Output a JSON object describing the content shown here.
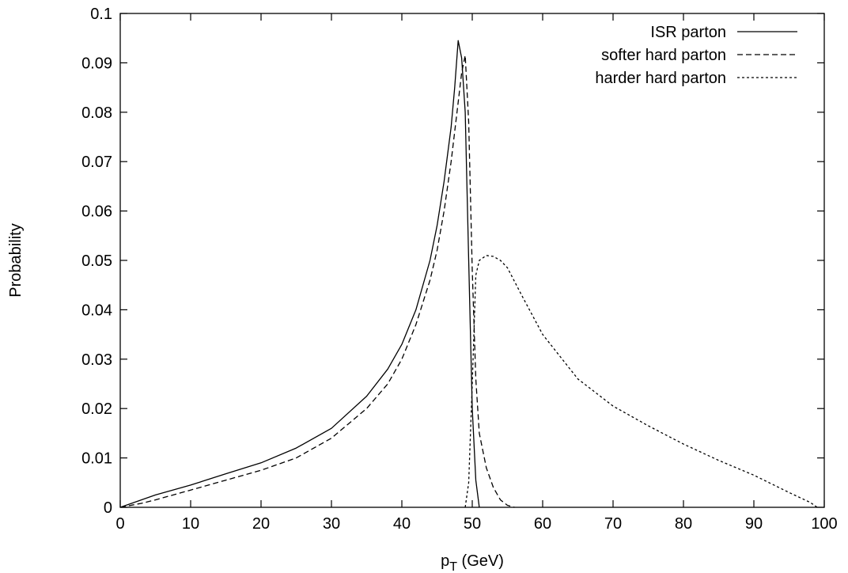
{
  "chart_data": {
    "type": "line",
    "title": "",
    "xlabel": "",
    "xlabel_base": "p",
    "xlabel_sub": "T",
    "xlabel_rest": " (GeV)",
    "ylabel": "Probability",
    "xlim": [
      0,
      100
    ],
    "ylim": [
      0,
      0.1
    ],
    "x_ticks": [
      0,
      10,
      20,
      30,
      40,
      50,
      60,
      70,
      80,
      90,
      100
    ],
    "x_tick_labels": [
      "0",
      "10",
      "20",
      "30",
      "40",
      "50",
      "60",
      "70",
      "80",
      "90",
      "100"
    ],
    "y_ticks": [
      0,
      0.01,
      0.02,
      0.03,
      0.04,
      0.05,
      0.06,
      0.07,
      0.08,
      0.09,
      0.1
    ],
    "y_tick_labels": [
      "0",
      "0.01",
      "0.02",
      "0.03",
      "0.04",
      "0.05",
      "0.06",
      "0.07",
      "0.08",
      "0.09",
      "0.1"
    ],
    "grid": false,
    "legend_position": "top-right",
    "series": [
      {
        "name": "ISR parton",
        "dash": "solid",
        "x": [
          0,
          5,
          10,
          15,
          20,
          25,
          30,
          35,
          38,
          40,
          42,
          44,
          45,
          46,
          47,
          47.5,
          48,
          48.5,
          49,
          49.5,
          50,
          50.5,
          51
        ],
        "y": [
          0,
          0.0025,
          0.0045,
          0.0068,
          0.009,
          0.012,
          0.016,
          0.0225,
          0.028,
          0.033,
          0.04,
          0.05,
          0.057,
          0.066,
          0.077,
          0.085,
          0.0945,
          0.091,
          0.08,
          0.05,
          0.02,
          0.0055,
          0
        ]
      },
      {
        "name": "softer hard parton",
        "dash": "dashed",
        "x": [
          0,
          3,
          5,
          10,
          15,
          20,
          25,
          30,
          35,
          38,
          40,
          42,
          44,
          45,
          46,
          47,
          48,
          48.5,
          49,
          49.5,
          50,
          50.5,
          51,
          52,
          53,
          54,
          55,
          56
        ],
        "y": [
          0,
          0.0008,
          0.0015,
          0.0035,
          0.0055,
          0.0075,
          0.01,
          0.014,
          0.02,
          0.025,
          0.03,
          0.037,
          0.046,
          0.052,
          0.06,
          0.07,
          0.082,
          0.088,
          0.0915,
          0.078,
          0.048,
          0.026,
          0.015,
          0.008,
          0.004,
          0.0015,
          0.0004,
          0
        ]
      },
      {
        "name": "harder hard parton",
        "dash": "dotted",
        "x": [
          49,
          49.5,
          50,
          50.5,
          51,
          52,
          53,
          54,
          55,
          57,
          60,
          65,
          70,
          75,
          80,
          85,
          90,
          95,
          98,
          99
        ],
        "y": [
          0,
          0.005,
          0.025,
          0.047,
          0.05,
          0.051,
          0.0508,
          0.05,
          0.0485,
          0.043,
          0.035,
          0.026,
          0.0205,
          0.0165,
          0.0128,
          0.0095,
          0.0065,
          0.003,
          0.001,
          0
        ]
      }
    ]
  }
}
